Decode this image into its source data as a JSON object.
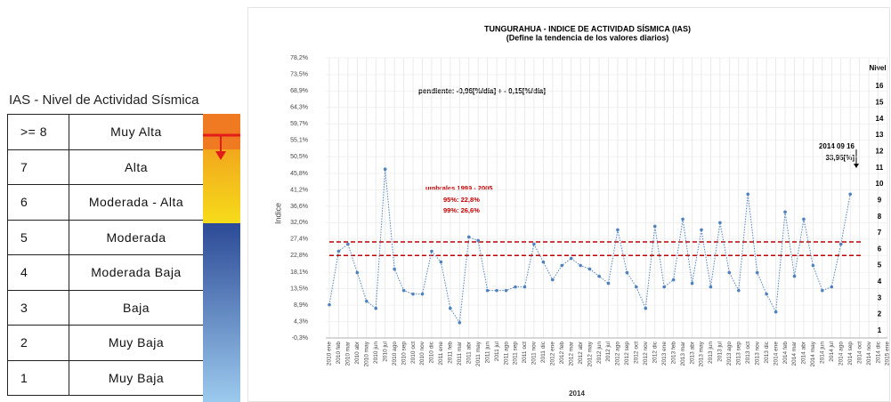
{
  "table": {
    "title": "IAS - Nivel de Actividad Sísmica",
    "rows": [
      [
        ">= 8",
        "Muy Alta"
      ],
      [
        "7",
        "Alta"
      ],
      [
        "6",
        "Moderada - Alta"
      ],
      [
        "5",
        "Moderada"
      ],
      [
        "4",
        "Moderada Baja"
      ],
      [
        "3",
        "Baja"
      ],
      [
        "2",
        "Muy Baja"
      ],
      [
        "1",
        "Muy Baja"
      ]
    ]
  },
  "chart_data": {
    "type": "line",
    "title": "TUNGURAHUA - INDICE DE ACTIVIDAD SÍSMICA (IAS)",
    "subtitle": "(Define la tendencia de los valores diarios)",
    "y_label": "Indice",
    "x_label": "2014",
    "y2_label": "Nivel",
    "annotations": [
      "pendiente:  -0,96[%/día] + - 0,15[%/día]",
      "2014 09 16",
      "33,95[%]"
    ],
    "threshold_title": "umbrales 1999 - 2005",
    "thresholds": [
      {
        "value": 22.8,
        "label": "95%:   22,8%"
      },
      {
        "value": 26.6,
        "label": "99%:   26,6%"
      }
    ],
    "threshold_color": "#c00000",
    "categories": [
      "2010 ene",
      "2010 feb",
      "2010 mar",
      "2010 abr",
      "2010 may",
      "2010 jun",
      "2010 jul",
      "2010 ago",
      "2010 sep",
      "2010 oct",
      "2010 nov",
      "2010 dic",
      "2011 ene",
      "2011 feb",
      "2011 mar",
      "2011 abr",
      "2011 may",
      "2011 jun",
      "2011 jul",
      "2011 ago",
      "2011 sep",
      "2011 oct",
      "2011 nov",
      "2011 dic",
      "2012 ene",
      "2012 feb",
      "2012 mar",
      "2012 abr",
      "2012 may",
      "2012 jun",
      "2012 jul",
      "2012 ago",
      "2012 sep",
      "2012 oct",
      "2012 nov",
      "2012 dic",
      "2013 ene",
      "2013 feb",
      "2013 mar",
      "2013 abr",
      "2013 may",
      "2013 jun",
      "2013 jul",
      "2013 ago",
      "2013 sep",
      "2013 oct",
      "2013 nov",
      "2013 dic",
      "2014 ene",
      "2014 feb",
      "2014 mar",
      "2014 abr",
      "2014 may",
      "2014 jun",
      "2014 jul",
      "2014 ago",
      "2014 sep",
      "2014 oct",
      "2014 nov",
      "2014 dic",
      "2015 ene"
    ],
    "series": [
      {
        "name": "IAS",
        "color": "#4f81bd",
        "values": [
          9,
          24,
          26,
          18,
          10,
          8,
          47,
          19,
          13,
          12,
          12,
          24,
          21,
          8,
          4,
          28,
          27,
          13,
          13,
          13,
          14,
          14,
          26,
          21,
          16,
          20,
          22,
          20,
          19,
          17,
          15,
          30,
          18,
          14,
          8,
          31,
          14,
          16,
          33,
          15,
          30,
          14,
          32,
          18,
          13,
          40,
          18,
          12,
          7,
          35,
          17,
          33,
          20,
          13,
          14,
          26,
          40,
          null,
          null,
          null,
          null
        ]
      }
    ],
    "ylim": [
      -0.3,
      78.2
    ],
    "yticks": [
      {
        "value": -0.3,
        "label": "-0,3%"
      },
      {
        "value": 4.3,
        "label": "4,3%"
      },
      {
        "value": 8.9,
        "label": "8,9%"
      },
      {
        "value": 13.5,
        "label": "13,5%"
      },
      {
        "value": 18.1,
        "label": "18,1%"
      },
      {
        "value": 22.8,
        "label": "22,8%"
      },
      {
        "value": 27.4,
        "label": "27,4%"
      },
      {
        "value": 32.0,
        "label": "32,0%"
      },
      {
        "value": 36.6,
        "label": "36,6%"
      },
      {
        "value": 41.2,
        "label": "41,2%"
      },
      {
        "value": 45.8,
        "label": "45,8%"
      },
      {
        "value": 50.5,
        "label": "50,5%"
      },
      {
        "value": 55.1,
        "label": "55,1%"
      },
      {
        "value": 59.7,
        "label": "59,7%"
      },
      {
        "value": 64.3,
        "label": "64,3%"
      },
      {
        "value": 68.9,
        "label": "68,9%"
      },
      {
        "value": 73.5,
        "label": "73,5%"
      },
      {
        "value": 78.2,
        "label": "78,2%"
      }
    ],
    "y2lim": [
      0.56,
      17.75
    ],
    "y2ticks": [
      1,
      2,
      3,
      4,
      5,
      6,
      7,
      8,
      9,
      10,
      11,
      12,
      13,
      14,
      15,
      16
    ],
    "grid": true
  }
}
